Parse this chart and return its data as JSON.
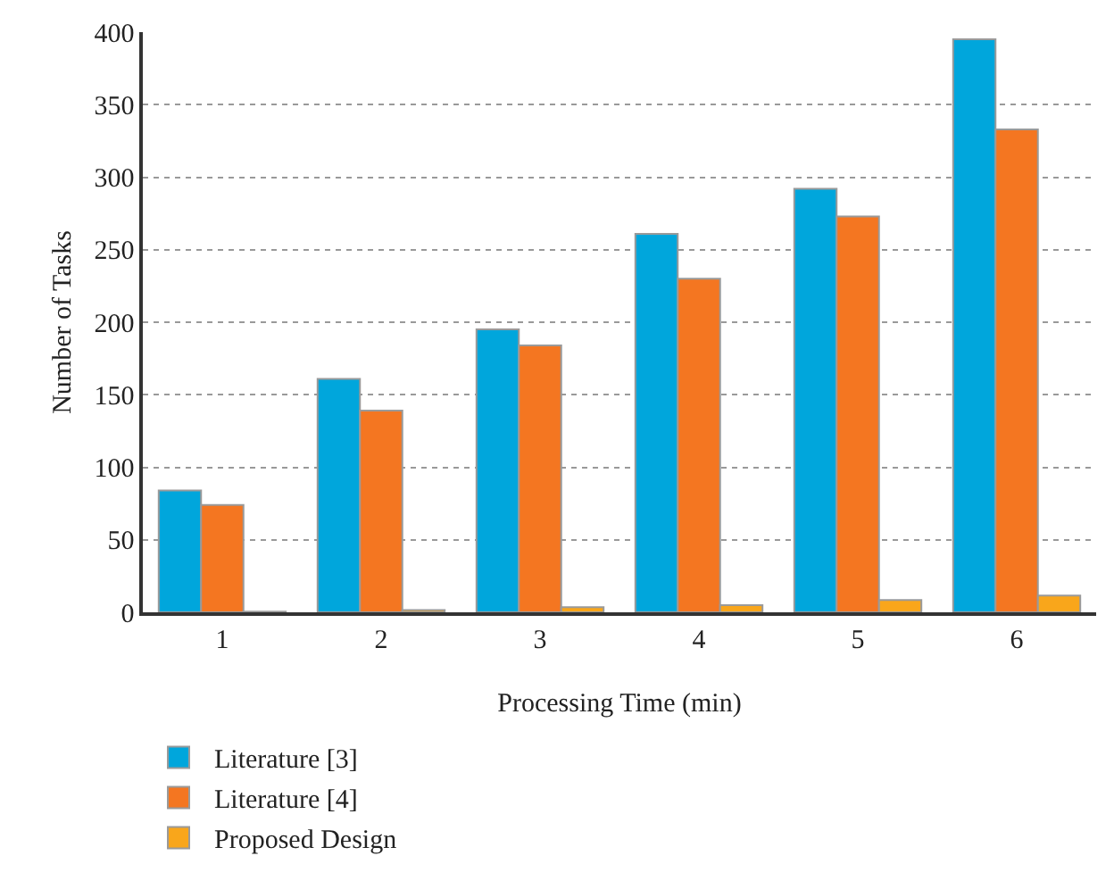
{
  "chart_data": {
    "type": "bar",
    "xlabel": "Processing Time (min)",
    "ylabel": "Number of Tasks",
    "categories": [
      "1",
      "2",
      "3",
      "4",
      "5",
      "6"
    ],
    "series": [
      {
        "name": "Literature [3]",
        "color": "#00a6dc",
        "values": [
          84,
          161,
          195,
          261,
          292,
          395
        ]
      },
      {
        "name": "Literature [4]",
        "color": "#f47621",
        "values": [
          74,
          139,
          184,
          230,
          273,
          333
        ]
      },
      {
        "name": "Proposed Design",
        "color": "#f9a61b",
        "values": [
          0.5,
          1.5,
          3.5,
          5,
          8.5,
          11.5
        ]
      }
    ],
    "ylim": [
      0,
      400
    ],
    "yticks": [
      0,
      50,
      100,
      150,
      200,
      250,
      300,
      350,
      400
    ],
    "grid": "y",
    "legend": "bottom left"
  }
}
